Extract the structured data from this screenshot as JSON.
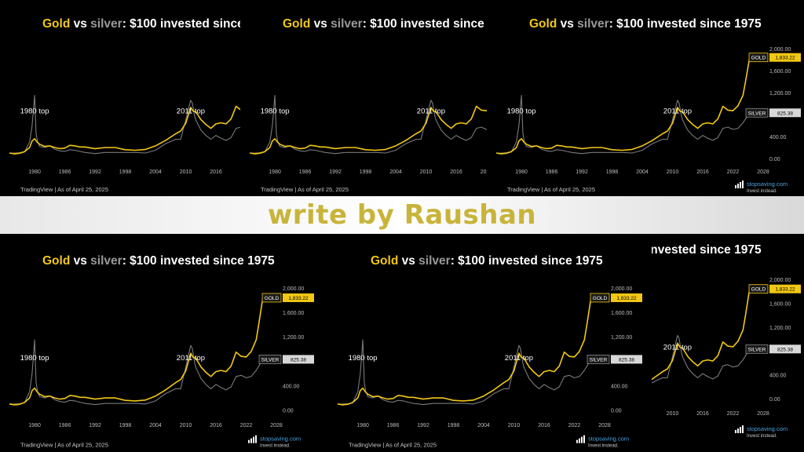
{
  "banner": {
    "text": "write by Raushan"
  },
  "colors": {
    "gold": "#f2c814",
    "silver": "#7a7a7a",
    "banner_text": "#c8b43a",
    "background": "#000000"
  },
  "chart_data": {
    "type": "line",
    "title_parts": {
      "gold": "Gold",
      "vs": " vs ",
      "silver": "silver",
      "rest": ": $100 invested since 1975"
    },
    "x_ticks": [
      "1980",
      "1986",
      "1992",
      "1998",
      "2004",
      "2010",
      "2016",
      "2022",
      "2028"
    ],
    "y_ticks": [
      "0.00",
      "400.00",
      "1,200.00",
      "1,600.00",
      "2,000.00"
    ],
    "xlim": [
      1975,
      2028
    ],
    "ylim": [
      0,
      2000
    ],
    "annotations": [
      {
        "text": "1980 top",
        "x": 1980,
        "y": 820
      },
      {
        "text": "2011 top",
        "x": 2011,
        "y": 820
      }
    ],
    "footer": "TradingView | As of April 25, 2025",
    "brand": {
      "name": "stopsaving.com",
      "tagline": "Invest instead."
    },
    "legend": {
      "gold_label": "GOLD",
      "gold_value": "1,833.22",
      "silver_label": "SILVER",
      "silver_value": "825.38"
    },
    "series": [
      {
        "name": "GOLD",
        "color": "#f2c814",
        "x": [
          1975,
          1976,
          1977,
          1978,
          1979,
          1979.5,
          1980,
          1980.5,
          1981,
          1982,
          1983,
          1984,
          1985,
          1986,
          1987,
          1988,
          1989,
          1990,
          1992,
          1994,
          1996,
          1998,
          2000,
          2002,
          2004,
          2006,
          2008,
          2009,
          2010,
          2011,
          2011.5,
          2012,
          2013,
          2014,
          2015,
          2016,
          2017,
          2018,
          2019,
          2020,
          2021,
          2022,
          2023,
          2024,
          2024.5,
          2025.3
        ],
        "y": [
          100,
          85,
          95,
          125,
          200,
          320,
          360,
          300,
          260,
          220,
          230,
          200,
          180,
          190,
          240,
          230,
          210,
          210,
          180,
          200,
          200,
          160,
          150,
          165,
          230,
          330,
          450,
          500,
          640,
          930,
          860,
          850,
          710,
          620,
          550,
          630,
          650,
          630,
          720,
          950,
          880,
          870,
          960,
          1150,
          1400,
          1833
        ]
      },
      {
        "name": "SILVER",
        "color": "#7a7a7a",
        "x": [
          1975,
          1976,
          1977,
          1978,
          1979,
          1979.5,
          1980,
          1980.3,
          1980.6,
          1981,
          1982,
          1983,
          1984,
          1985,
          1986,
          1987,
          1988,
          1989,
          1990,
          1992,
          1994,
          1996,
          1998,
          2000,
          2002,
          2004,
          2006,
          2008,
          2009,
          2010,
          2011,
          2011.3,
          2011.8,
          2012,
          2013,
          2014,
          2015,
          2016,
          2017,
          2018,
          2019,
          2020,
          2021,
          2022,
          2023,
          2024,
          2024.5,
          2025.3
        ],
        "y": [
          100,
          100,
          105,
          120,
          300,
          600,
          1150,
          450,
          300,
          220,
          200,
          230,
          170,
          140,
          130,
          160,
          150,
          130,
          110,
          90,
          110,
          110,
          110,
          110,
          100,
          150,
          270,
          350,
          350,
          700,
          1060,
          1010,
          760,
          700,
          520,
          420,
          350,
          420,
          370,
          330,
          380,
          550,
          570,
          530,
          550,
          650,
          720,
          825
        ]
      }
    ]
  }
}
